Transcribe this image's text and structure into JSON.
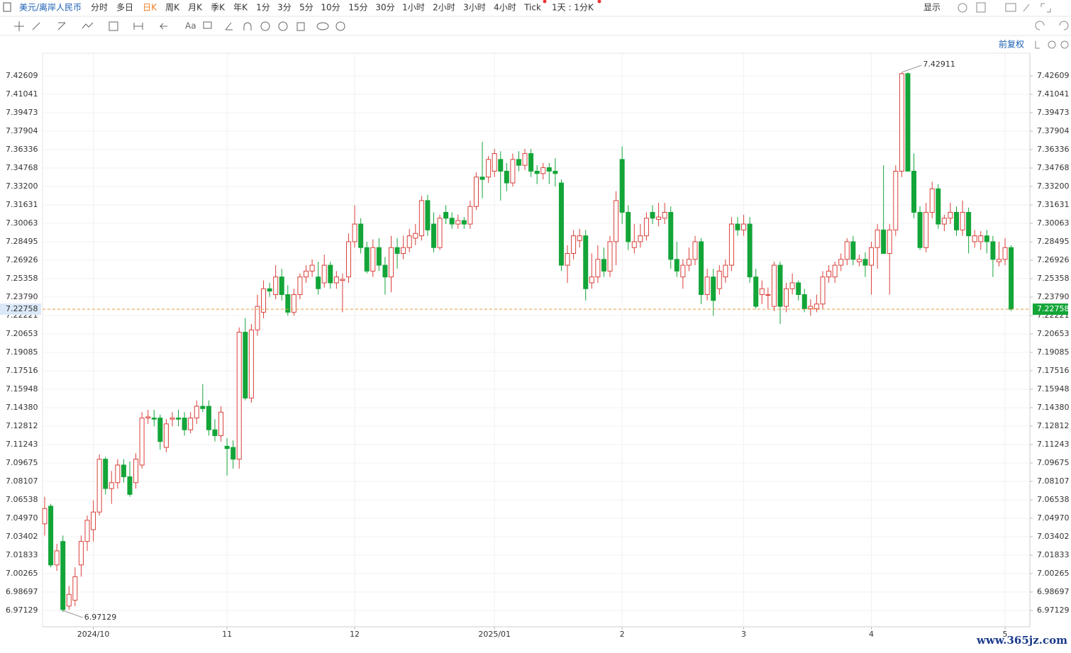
{
  "toolbar": {
    "symbol": "美元/离岸人民币",
    "periods": [
      "分时",
      "多日",
      "日K",
      "周K",
      "月K",
      "季K",
      "年K",
      "1分",
      "3分",
      "5分",
      "10分",
      "15分",
      "30分",
      "1小时",
      "2小时",
      "3小时",
      "4小时",
      "Tick"
    ],
    "period_setting": "1天 : 1分K",
    "display": "显示"
  },
  "adjust": "前复权",
  "watermark": "www.365jz.com",
  "chart_data": {
    "type": "candlestick",
    "up_color": "#d9403a",
    "down_color": "#13a538",
    "grid": true,
    "ylim": [
      6.9574,
      7.4454
    ],
    "yticks": [
      7.42609,
      7.41041,
      7.39473,
      7.37904,
      7.36336,
      7.34768,
      {
        "value": 7.332,
        "label": "7.33200"
      },
      7.31631,
      7.30063,
      7.28495,
      7.26926,
      7.25358,
      {
        "value": 7.2379,
        "label": "7.23790"
      },
      7.22221,
      7.20653,
      7.19085,
      7.17516,
      7.15948,
      {
        "value": 7.1438,
        "label": "7.14380"
      },
      7.12812,
      7.11243,
      7.09675,
      7.08107,
      7.06538,
      {
        "value": 7.0497,
        "label": "7.04970"
      },
      7.03402,
      7.01833,
      7.00265,
      6.98697,
      6.97129
    ],
    "last_price": 7.22758,
    "high_mark": 7.42911,
    "low_mark": 6.97129,
    "categories": [
      null,
      null,
      null,
      null,
      null,
      null,
      null,
      null,
      "2024/10",
      null,
      null,
      null,
      null,
      null,
      null,
      null,
      null,
      null,
      null,
      null,
      null,
      null,
      null,
      null,
      null,
      null,
      null,
      null,
      null,
      null,
      "11",
      null,
      null,
      null,
      null,
      null,
      null,
      null,
      null,
      null,
      null,
      null,
      null,
      null,
      null,
      null,
      null,
      null,
      null,
      null,
      null,
      "12",
      null,
      null,
      null,
      null,
      null,
      null,
      null,
      null,
      null,
      null,
      null,
      null,
      null,
      null,
      null,
      null,
      null,
      null,
      null,
      null,
      null,
      null,
      "2025/01",
      null,
      null,
      null,
      null,
      null,
      null,
      null,
      null,
      null,
      null,
      null,
      null,
      null,
      null,
      null,
      null,
      null,
      null,
      null,
      null,
      "2",
      null,
      null,
      null,
      null,
      null,
      null,
      null,
      null,
      null,
      null,
      null,
      null,
      null,
      null,
      null,
      null,
      null,
      null,
      null,
      "3",
      null,
      null,
      null,
      null,
      null,
      null,
      null,
      null,
      null,
      null,
      null,
      null,
      null,
      null,
      null,
      null,
      null,
      null,
      null,
      null,
      "4",
      null,
      null,
      null,
      null,
      null,
      null,
      null,
      null,
      null,
      null,
      null,
      null,
      null,
      null,
      null,
      null,
      null,
      null,
      null,
      null,
      null,
      "5",
      null
    ],
    "ohlc": [
      [
        7.045,
        7.068,
        7.035,
        7.058
      ],
      [
        7.06,
        7.062,
        7.008,
        7.01
      ],
      [
        7.01,
        7.028,
        7.005,
        7.022
      ],
      [
        7.03,
        7.035,
        6.97,
        6.972
      ],
      [
        6.975,
        6.992,
        6.972,
        6.985
      ],
      [
        6.98,
        7.008,
        6.975,
        7.0
      ],
      [
        7.01,
        7.035,
        7.0,
        7.03
      ],
      [
        7.03,
        7.052,
        7.022,
        7.048
      ],
      [
        7.04,
        7.065,
        7.03,
        7.055
      ],
      [
        7.055,
        7.104,
        7.052,
        7.1
      ],
      [
        7.1,
        7.102,
        7.07,
        7.075
      ],
      [
        7.075,
        7.09,
        7.062,
        7.08
      ],
      [
        7.08,
        7.1,
        7.075,
        7.095
      ],
      [
        7.095,
        7.1,
        7.08,
        7.085
      ],
      [
        7.085,
        7.098,
        7.068,
        7.07
      ],
      [
        7.08,
        7.105,
        7.075,
        7.1
      ],
      [
        7.095,
        7.14,
        7.092,
        7.135
      ],
      [
        7.135,
        7.142,
        7.13,
        7.136
      ],
      [
        7.135,
        7.142,
        7.128,
        7.134
      ],
      [
        7.135,
        7.138,
        7.108,
        7.115
      ],
      [
        7.11,
        7.134,
        7.106,
        7.13
      ],
      [
        7.134,
        7.14,
        7.128,
        7.135
      ],
      [
        7.135,
        7.142,
        7.128,
        7.134
      ],
      [
        7.135,
        7.14,
        7.12,
        7.125
      ],
      [
        7.125,
        7.14,
        7.122,
        7.135
      ],
      [
        7.135,
        7.15,
        7.13,
        7.145
      ],
      [
        7.145,
        7.164,
        7.14,
        7.143
      ],
      [
        7.145,
        7.15,
        7.12,
        7.125
      ],
      [
        7.125,
        7.134,
        7.115,
        7.12
      ],
      [
        7.12,
        7.145,
        7.115,
        7.14
      ],
      [
        7.111,
        7.118,
        7.086,
        7.109
      ],
      [
        7.11,
        7.116,
        7.092,
        7.1
      ],
      [
        7.1,
        7.212,
        7.092,
        7.208
      ],
      [
        7.208,
        7.22,
        7.15,
        7.152
      ],
      [
        7.152,
        7.215,
        7.148,
        7.21
      ],
      [
        7.21,
        7.24,
        7.205,
        7.23
      ],
      [
        7.225,
        7.252,
        7.22,
        7.245
      ],
      [
        7.245,
        7.25,
        7.238,
        7.243
      ],
      [
        7.24,
        7.265,
        7.236,
        7.255
      ],
      [
        7.255,
        7.262,
        7.235,
        7.24
      ],
      [
        7.24,
        7.248,
        7.222,
        7.225
      ],
      [
        7.225,
        7.245,
        7.222,
        7.24
      ],
      [
        7.24,
        7.258,
        7.236,
        7.255
      ],
      [
        7.255,
        7.265,
        7.25,
        7.26
      ],
      [
        7.26,
        7.27,
        7.255,
        7.265
      ],
      [
        7.255,
        7.268,
        7.24,
        7.245
      ],
      [
        7.25,
        7.274,
        7.246,
        7.265
      ],
      [
        7.265,
        7.268,
        7.245,
        7.25
      ],
      [
        7.25,
        7.26,
        7.245,
        7.255
      ],
      [
        7.252,
        7.258,
        7.225,
        7.253
      ],
      [
        7.255,
        7.292,
        7.25,
        7.285
      ],
      [
        7.285,
        7.316,
        7.28,
        7.3
      ],
      [
        7.3,
        7.305,
        7.275,
        7.28
      ],
      [
        7.28,
        7.285,
        7.258,
        7.26
      ],
      [
        7.26,
        7.287,
        7.255,
        7.28
      ],
      [
        7.28,
        7.288,
        7.26,
        7.265
      ],
      [
        7.265,
        7.272,
        7.24,
        7.255
      ],
      [
        7.255,
        7.29,
        7.242,
        7.28
      ],
      [
        7.28,
        7.288,
        7.262,
        7.275
      ],
      [
        7.275,
        7.29,
        7.27,
        7.28
      ],
      [
        7.28,
        7.296,
        7.276,
        7.29
      ],
      [
        7.288,
        7.3,
        7.282,
        7.292
      ],
      [
        7.29,
        7.324,
        7.286,
        7.32
      ],
      [
        7.32,
        7.325,
        7.29,
        7.295
      ],
      [
        7.3,
        7.31,
        7.276,
        7.28
      ],
      [
        7.28,
        7.308,
        7.278,
        7.305
      ],
      [
        7.31,
        7.316,
        7.3,
        7.305
      ],
      [
        7.305,
        7.31,
        7.296,
        7.3
      ],
      [
        7.3,
        7.308,
        7.296,
        7.303
      ],
      [
        7.303,
        7.306,
        7.296,
        7.3
      ],
      [
        7.3,
        7.32,
        7.296,
        7.315
      ],
      [
        7.315,
        7.344,
        7.312,
        7.34
      ],
      [
        7.34,
        7.37,
        7.322,
        7.338
      ],
      [
        7.34,
        7.358,
        7.335,
        7.355
      ],
      [
        7.345,
        7.364,
        7.34,
        7.36
      ],
      [
        7.355,
        7.362,
        7.32,
        7.345
      ],
      [
        7.345,
        7.352,
        7.328,
        7.335
      ],
      [
        7.335,
        7.36,
        7.332,
        7.355
      ],
      [
        7.355,
        7.362,
        7.345,
        7.35
      ],
      [
        7.35,
        7.364,
        7.346,
        7.36
      ],
      [
        7.36,
        7.364,
        7.34,
        7.345
      ],
      [
        7.345,
        7.35,
        7.334,
        7.343
      ],
      [
        7.343,
        7.352,
        7.338,
        7.348
      ],
      [
        7.348,
        7.352,
        7.334,
        7.345
      ],
      [
        7.345,
        7.356,
        7.332,
        7.343
      ],
      [
        7.335,
        7.338,
        7.26,
        7.265
      ],
      [
        7.265,
        7.282,
        7.25,
        7.275
      ],
      [
        7.275,
        7.295,
        7.27,
        7.29
      ],
      [
        7.286,
        7.296,
        7.28,
        7.29
      ],
      [
        7.29,
        7.295,
        7.235,
        7.245
      ],
      [
        7.25,
        7.275,
        7.245,
        7.255
      ],
      [
        7.255,
        7.282,
        7.25,
        7.27
      ],
      [
        7.27,
        7.28,
        7.255,
        7.26
      ],
      [
        7.26,
        7.29,
        7.255,
        7.285
      ],
      [
        7.285,
        7.328,
        7.265,
        7.32
      ],
      [
        7.355,
        7.366,
        7.3,
        7.31
      ],
      [
        7.31,
        7.316,
        7.278,
        7.285
      ],
      [
        7.28,
        7.3,
        7.275,
        7.285
      ],
      [
        7.285,
        7.3,
        7.28,
        7.29
      ],
      [
        7.29,
        7.31,
        7.286,
        7.305
      ],
      [
        7.31,
        7.316,
        7.3,
        7.305
      ],
      [
        7.304,
        7.318,
        7.298,
        7.306
      ],
      [
        7.305,
        7.318,
        7.3,
        7.31
      ],
      [
        7.31,
        7.315,
        7.262,
        7.27
      ],
      [
        7.27,
        7.285,
        7.255,
        7.26
      ],
      [
        7.255,
        7.27,
        7.245,
        7.265
      ],
      [
        7.265,
        7.28,
        7.26,
        7.27
      ],
      [
        7.27,
        7.29,
        7.265,
        7.285
      ],
      [
        7.285,
        7.288,
        7.232,
        7.24
      ],
      [
        7.24,
        7.262,
        7.235,
        7.255
      ],
      [
        7.255,
        7.262,
        7.222,
        7.235
      ],
      [
        7.245,
        7.265,
        7.24,
        7.26
      ],
      [
        7.255,
        7.27,
        7.25,
        7.265
      ],
      [
        7.265,
        7.306,
        7.26,
        7.3
      ],
      [
        7.3,
        7.306,
        7.29,
        7.295
      ],
      [
        7.295,
        7.308,
        7.29,
        7.3
      ],
      [
        7.3,
        7.306,
        7.25,
        7.255
      ],
      [
        7.255,
        7.262,
        7.228,
        7.23
      ],
      [
        7.24,
        7.252,
        7.232,
        7.245
      ],
      [
        7.24,
        7.246,
        7.228,
        7.24
      ],
      [
        7.23,
        7.268,
        7.226,
        7.265
      ],
      [
        7.265,
        7.268,
        7.215,
        7.23
      ],
      [
        7.23,
        7.25,
        7.225,
        7.245
      ],
      [
        7.245,
        7.258,
        7.24,
        7.25
      ],
      [
        7.25,
        7.252,
        7.235,
        7.24
      ],
      [
        7.24,
        7.245,
        7.225,
        7.228
      ],
      [
        7.228,
        7.236,
        7.222,
        7.23
      ],
      [
        7.228,
        7.24,
        7.225,
        7.232
      ],
      [
        7.232,
        7.26,
        7.228,
        7.255
      ],
      [
        7.255,
        7.265,
        7.25,
        7.26
      ],
      [
        7.255,
        7.268,
        7.25,
        7.265
      ],
      [
        7.265,
        7.275,
        7.26,
        7.27
      ],
      [
        7.27,
        7.288,
        7.265,
        7.285
      ],
      [
        7.285,
        7.29,
        7.265,
        7.27
      ],
      [
        7.268,
        7.274,
        7.264,
        7.27
      ],
      [
        7.27,
        7.276,
        7.255,
        7.265
      ],
      [
        7.265,
        7.285,
        7.24,
        7.28
      ],
      [
        7.28,
        7.3,
        7.262,
        7.295
      ],
      [
        7.295,
        7.35,
        7.275,
        7.275
      ],
      [
        7.275,
        7.3,
        7.24,
        7.295
      ],
      [
        7.295,
        7.35,
        7.29,
        7.345
      ],
      [
        7.345,
        7.429,
        7.34,
        7.428
      ],
      [
        7.428,
        7.429,
        7.345,
        7.345
      ],
      [
        7.345,
        7.36,
        7.305,
        7.31
      ],
      [
        7.31,
        7.315,
        7.278,
        7.28
      ],
      [
        7.28,
        7.318,
        7.276,
        7.31
      ],
      [
        7.31,
        7.336,
        7.305,
        7.33
      ],
      [
        7.33,
        7.334,
        7.296,
        7.3
      ],
      [
        7.3,
        7.308,
        7.294,
        7.305
      ],
      [
        7.305,
        7.318,
        7.3,
        7.31
      ],
      [
        7.31,
        7.315,
        7.29,
        7.295
      ],
      [
        7.295,
        7.32,
        7.29,
        7.31
      ],
      [
        7.31,
        7.314,
        7.275,
        7.29
      ],
      [
        7.285,
        7.295,
        7.28,
        7.29
      ],
      [
        7.285,
        7.294,
        7.278,
        7.29
      ],
      [
        7.29,
        7.295,
        7.275,
        7.285
      ],
      [
        7.285,
        7.29,
        7.255,
        7.27
      ],
      [
        7.268,
        7.285,
        7.264,
        7.27
      ],
      [
        7.27,
        7.288,
        7.265,
        7.28
      ],
      [
        7.28,
        7.282,
        7.226,
        7.2276
      ]
    ]
  }
}
